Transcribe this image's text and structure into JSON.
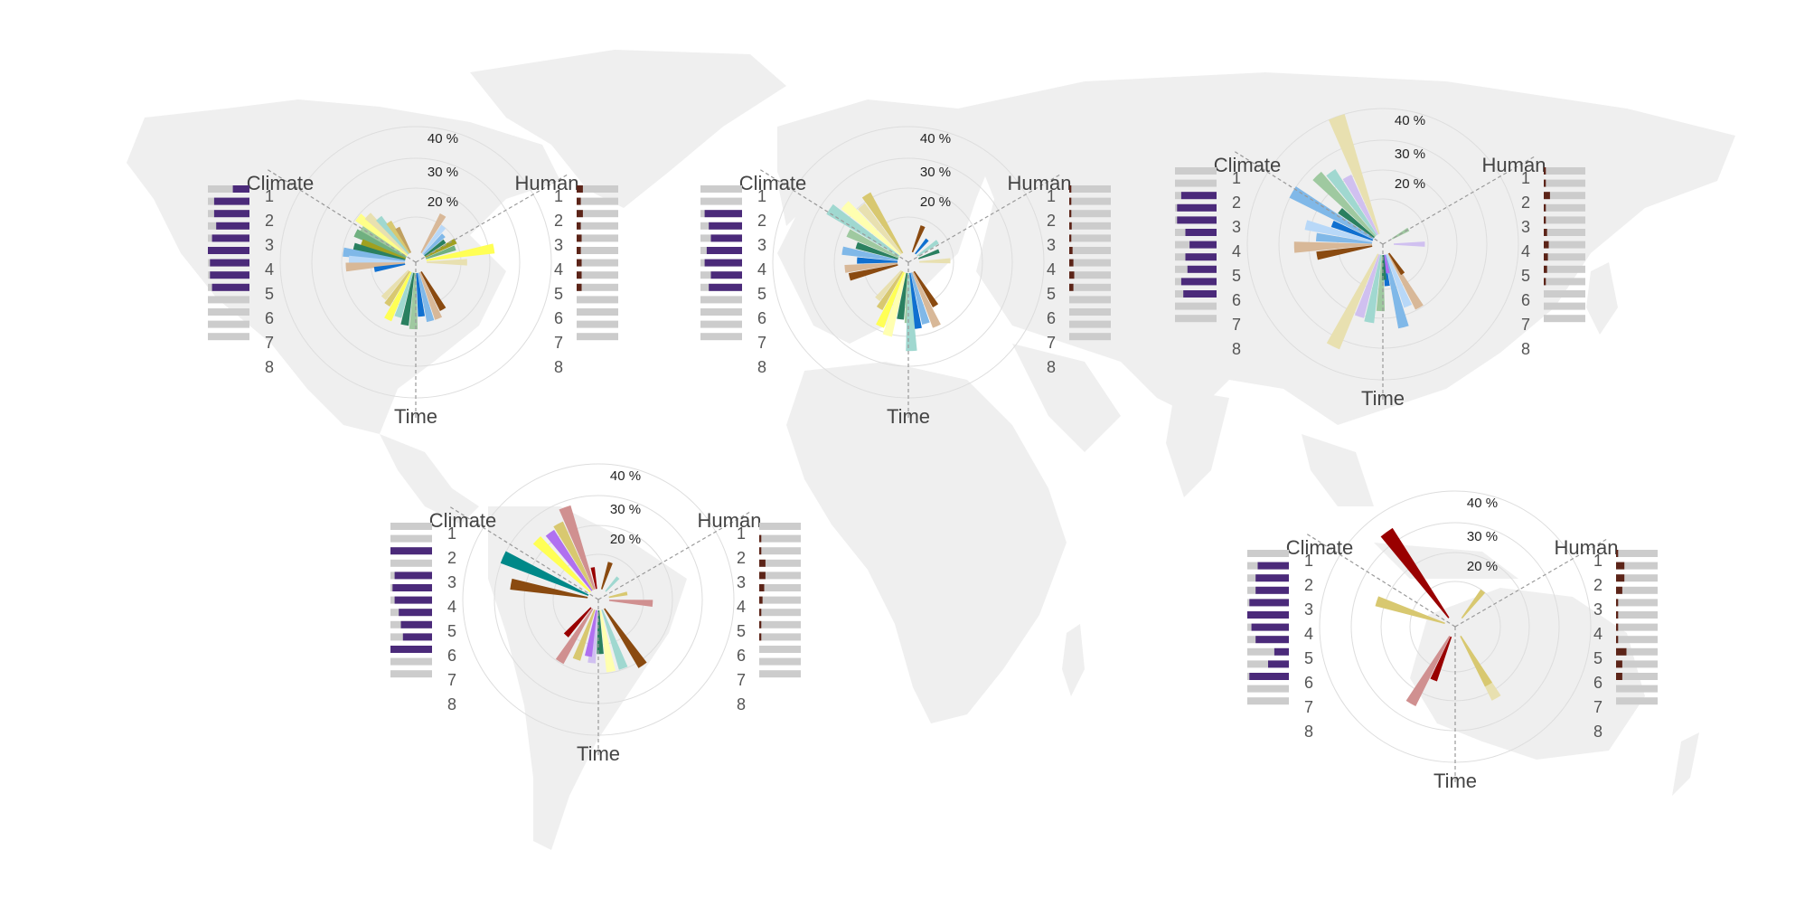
{
  "colors": {
    "map_land": "#efefef",
    "grid": "#dddddd",
    "bar_track": "#cccccc",
    "climate_bar": "#4b2a7a",
    "human_bar": "#5c2418",
    "axis_line": "#999999"
  },
  "chart_data": [
    {
      "type": "polar-bar",
      "region": "North America",
      "axis_labels": {
        "climate": "Climate",
        "human": "Human",
        "time": "Time"
      },
      "ring_labels": [
        "40 %",
        "30 %",
        "20 %"
      ],
      "sector_labels": [
        "1",
        "2",
        "3",
        "4",
        "5",
        "6",
        "7",
        "8"
      ],
      "climate_bars": [
        0.4,
        0.85,
        0.85,
        0.8,
        0.9,
        1.0,
        0.95,
        0.95,
        0.9
      ],
      "human_bars": [
        0.15,
        0.1,
        0.15,
        0.1,
        0.12,
        0.1,
        0.12,
        0.12,
        0.12
      ],
      "wedges": [
        {
          "deg": -58,
          "value": 17,
          "color": "#9fc9a0"
        },
        {
          "deg": -52,
          "value": 20,
          "color": "#ffff88"
        },
        {
          "deg": -46,
          "value": 18,
          "color": "#e8e0b0"
        },
        {
          "deg": -40,
          "value": 15,
          "color": "#a0d8d0"
        },
        {
          "deg": -34,
          "value": 12,
          "color": "#d8c870"
        },
        {
          "deg": -28,
          "value": 9,
          "color": "#c0a060"
        },
        {
          "deg": -64,
          "value": 18,
          "color": "#70b080"
        },
        {
          "deg": -70,
          "value": 15,
          "color": "#a0a020"
        },
        {
          "deg": -76,
          "value": 17,
          "color": "#2a8060"
        },
        {
          "deg": -82,
          "value": 20,
          "color": "#80b8e8"
        },
        {
          "deg": -88,
          "value": 18,
          "color": "#b8d8f8"
        },
        {
          "deg": -94,
          "value": 19,
          "color": "#d8b898"
        },
        {
          "deg": -100,
          "value": 10,
          "color": "#1070d0"
        },
        {
          "deg": 30,
          "value": 14,
          "color": "#d8b898"
        },
        {
          "deg": 38,
          "value": 11,
          "color": "#b8d8f8"
        },
        {
          "deg": 46,
          "value": 9,
          "color": "#80b8e8"
        },
        {
          "deg": 54,
          "value": 8,
          "color": "#2a8060"
        },
        {
          "deg": 62,
          "value": 11,
          "color": "#a0a020"
        },
        {
          "deg": 70,
          "value": 10,
          "color": "#70b080"
        },
        {
          "deg": 80,
          "value": 22,
          "color": "#ffff55"
        },
        {
          "deg": 90,
          "value": 13,
          "color": "#e8e0b0"
        },
        {
          "deg": 150,
          "value": 14,
          "color": "#8a4a10"
        },
        {
          "deg": 158,
          "value": 16,
          "color": "#d8b898"
        },
        {
          "deg": 166,
          "value": 16,
          "color": "#80b8e8"
        },
        {
          "deg": 174,
          "value": 14,
          "color": "#1070d0"
        },
        {
          "deg": 182,
          "value": 18,
          "color": "#9fc9a0"
        },
        {
          "deg": 190,
          "value": 17,
          "color": "#2a8060"
        },
        {
          "deg": 198,
          "value": 15,
          "color": "#a0d8d0"
        },
        {
          "deg": 206,
          "value": 17,
          "color": "#ffff55"
        },
        {
          "deg": 214,
          "value": 13,
          "color": "#d8c870"
        },
        {
          "deg": 222,
          "value": 12,
          "color": "#e8e0b0"
        }
      ]
    },
    {
      "type": "polar-bar",
      "region": "Europe",
      "axis_labels": {
        "climate": "Climate",
        "human": "Human",
        "time": "Time"
      },
      "ring_labels": [
        "40 %",
        "30 %",
        "20 %"
      ],
      "sector_labels": [
        "1",
        "2",
        "3",
        "4",
        "5",
        "6",
        "7",
        "8"
      ],
      "climate_bars": [
        0.0,
        0.0,
        0.9,
        0.8,
        0.75,
        0.85,
        0.9,
        0.75,
        0.8
      ],
      "human_bars": [
        0.05,
        0.05,
        0.05,
        0.06,
        0.05,
        0.08,
        0.1,
        0.12,
        0.1
      ],
      "wedges": [
        {
          "deg": -56,
          "value": 27,
          "color": "#a0d8d0"
        },
        {
          "deg": -48,
          "value": 24,
          "color": "#ffffb0"
        },
        {
          "deg": -40,
          "value": 20,
          "color": "#e8e0b0"
        },
        {
          "deg": -32,
          "value": 22,
          "color": "#d8c870"
        },
        {
          "deg": -64,
          "value": 18,
          "color": "#9fc9a0"
        },
        {
          "deg": -72,
          "value": 14,
          "color": "#2a8060"
        },
        {
          "deg": -80,
          "value": 18,
          "color": "#80b8e8"
        },
        {
          "deg": -88,
          "value": 13,
          "color": "#1070d0"
        },
        {
          "deg": -96,
          "value": 17,
          "color": "#d8b898"
        },
        {
          "deg": -104,
          "value": 16,
          "color": "#8a4a10"
        },
        {
          "deg": 22,
          "value": 9,
          "color": "#8a4a10"
        },
        {
          "deg": 40,
          "value": 6,
          "color": "#1070d0"
        },
        {
          "deg": 55,
          "value": 8,
          "color": "#a0d8d0"
        },
        {
          "deg": 70,
          "value": 7,
          "color": "#2a8060"
        },
        {
          "deg": 88,
          "value": 10,
          "color": "#e8e0b0"
        },
        {
          "deg": 148,
          "value": 13,
          "color": "#8a4a10"
        },
        {
          "deg": 156,
          "value": 19,
          "color": "#d8b898"
        },
        {
          "deg": 164,
          "value": 17,
          "color": "#80b8e8"
        },
        {
          "deg": 172,
          "value": 18,
          "color": "#1070d0"
        },
        {
          "deg": 180,
          "value": 16,
          "color": "#9fc9a0"
        },
        {
          "deg": 188,
          "value": 15,
          "color": "#2a8060"
        },
        {
          "deg": 178,
          "value": 25,
          "color": "#a0d8d0"
        },
        {
          "deg": 196,
          "value": 21,
          "color": "#ffffb0"
        },
        {
          "deg": 204,
          "value": 19,
          "color": "#ffff55"
        },
        {
          "deg": 212,
          "value": 14,
          "color": "#d8c870"
        },
        {
          "deg": 220,
          "value": 12,
          "color": "#e8e0b0"
        }
      ]
    },
    {
      "type": "polar-bar",
      "region": "Asia",
      "axis_labels": {
        "climate": "Climate",
        "human": "Human",
        "time": "Time"
      },
      "ring_labels": [
        "40 %",
        "30 %",
        "20 %"
      ],
      "sector_labels": [
        "1",
        "2",
        "3",
        "4",
        "5",
        "6",
        "7",
        "8"
      ],
      "climate_bars": [
        0.0,
        0.0,
        0.85,
        0.95,
        0.95,
        0.75,
        0.65,
        0.75,
        0.7,
        0.85,
        0.8
      ],
      "human_bars": [
        0.05,
        0.05,
        0.15,
        0.05,
        0.05,
        0.08,
        0.12,
        0.1,
        0.08,
        0.05
      ],
      "wedges": [
        {
          "deg": -20,
          "value": 40,
          "color": "#e8e0b0"
        },
        {
          "deg": -28,
          "value": 21,
          "color": "#d0c0f0"
        },
        {
          "deg": -36,
          "value": 25,
          "color": "#a0d8d0"
        },
        {
          "deg": -44,
          "value": 27,
          "color": "#9fc9a0"
        },
        {
          "deg": -52,
          "value": 14,
          "color": "#2a8060"
        },
        {
          "deg": -60,
          "value": 30,
          "color": "#80b8e8"
        },
        {
          "deg": -68,
          "value": 14,
          "color": "#1070d0"
        },
        {
          "deg": -76,
          "value": 22,
          "color": "#b8d8f8"
        },
        {
          "deg": -84,
          "value": 18,
          "color": "#80b8e8"
        },
        {
          "deg": -92,
          "value": 25,
          "color": "#d8b898"
        },
        {
          "deg": -100,
          "value": 18,
          "color": "#8a4a10"
        },
        {
          "deg": 60,
          "value": 6,
          "color": "#9fc9a0"
        },
        {
          "deg": 90,
          "value": 10,
          "color": "#d0c0f0"
        },
        {
          "deg": 150,
          "value": 20,
          "color": "#d8b898"
        },
        {
          "deg": 158,
          "value": 18,
          "color": "#b8d8f8"
        },
        {
          "deg": 166,
          "value": 24,
          "color": "#80b8e8"
        },
        {
          "deg": 174,
          "value": 10,
          "color": "#1070d0"
        },
        {
          "deg": 182,
          "value": 18,
          "color": "#9fc9a0"
        },
        {
          "deg": 190,
          "value": 22,
          "color": "#a0d8d0"
        },
        {
          "deg": 198,
          "value": 21,
          "color": "#d0c0f0"
        },
        {
          "deg": 206,
          "value": 33,
          "color": "#e8e0b0"
        },
        {
          "deg": 146,
          "value": 8,
          "color": "#8a4a10"
        },
        {
          "deg": 178,
          "value": 8,
          "color": "#2a8060"
        },
        {
          "deg": 170,
          "value": 6,
          "color": "#b070f0"
        }
      ]
    },
    {
      "type": "polar-bar",
      "region": "South America",
      "axis_labels": {
        "climate": "Climate",
        "human": "Human",
        "time": "Time"
      },
      "ring_labels": [
        "40 %",
        "30 %",
        "20 %"
      ],
      "sector_labels": [
        "1",
        "2",
        "3",
        "4",
        "5",
        "6",
        "7",
        "8"
      ],
      "climate_bars": [
        0.0,
        0.0,
        1.0,
        0.0,
        0.9,
        0.95,
        0.9,
        0.8,
        0.75,
        0.7,
        1.0
      ],
      "human_bars": [
        0.0,
        0.05,
        0.05,
        0.15,
        0.15,
        0.12,
        0.08,
        0.05,
        0.05,
        0.05
      ],
      "wedges": [
        {
          "deg": -20,
          "value": 28,
          "color": "#d09090"
        },
        {
          "deg": -28,
          "value": 24,
          "color": "#d8c870"
        },
        {
          "deg": -36,
          "value": 23,
          "color": "#b070f0"
        },
        {
          "deg": -46,
          "value": 24,
          "color": "#ffff55"
        },
        {
          "deg": -10,
          "value": 7,
          "color": "#990000"
        },
        {
          "deg": -66,
          "value": 30,
          "color": "#008888"
        },
        {
          "deg": -80,
          "value": 25,
          "color": "#8a4a10"
        },
        {
          "deg": 18,
          "value": 9,
          "color": "#8a4a10"
        },
        {
          "deg": 42,
          "value": 6,
          "color": "#a0d8d0"
        },
        {
          "deg": 78,
          "value": 6,
          "color": "#d8c870"
        },
        {
          "deg": 94,
          "value": 14,
          "color": "#d09090"
        },
        {
          "deg": 146,
          "value": 22,
          "color": "#8a4a10"
        },
        {
          "deg": 160,
          "value": 20,
          "color": "#a0d8d0"
        },
        {
          "deg": 170,
          "value": 20,
          "color": "#ffffb0"
        },
        {
          "deg": 178,
          "value": 14,
          "color": "#2a8060"
        },
        {
          "deg": 186,
          "value": 17,
          "color": "#d0c0f0"
        },
        {
          "deg": 190,
          "value": 15,
          "color": "#b070f0"
        },
        {
          "deg": 200,
          "value": 17,
          "color": "#d8c870"
        },
        {
          "deg": 212,
          "value": 20,
          "color": "#d09090"
        },
        {
          "deg": 222,
          "value": 12,
          "color": "#990000"
        }
      ]
    },
    {
      "type": "polar-bar",
      "region": "Australia",
      "axis_labels": {
        "climate": "Climate",
        "human": "Human",
        "time": "Time"
      },
      "ring_labels": [
        "40 %",
        "30 %",
        "20 %"
      ],
      "sector_labels": [
        "1",
        "2",
        "3",
        "4",
        "5",
        "6",
        "7",
        "8"
      ],
      "climate_bars": [
        0.0,
        0.75,
        0.8,
        0.8,
        0.95,
        1.0,
        0.9,
        0.8,
        0.35,
        0.5,
        0.95
      ],
      "human_bars": [
        0.05,
        0.2,
        0.2,
        0.15,
        0.05,
        0.05,
        0.05,
        0.05,
        0.25,
        0.15,
        0.15
      ],
      "wedges": [
        {
          "deg": -36,
          "value": 34,
          "color": "#990000"
        },
        {
          "deg": -72,
          "value": 23,
          "color": "#d8c870"
        },
        {
          "deg": 38,
          "value": 11,
          "color": "#d8c870"
        },
        {
          "deg": 150,
          "value": 23,
          "color": "#e8e0b0"
        },
        {
          "deg": 150,
          "value": 18,
          "color": "#d8c870"
        },
        {
          "deg": 210,
          "value": 25,
          "color": "#d09090"
        },
        {
          "deg": 202,
          "value": 15,
          "color": "#990000"
        }
      ]
    }
  ]
}
